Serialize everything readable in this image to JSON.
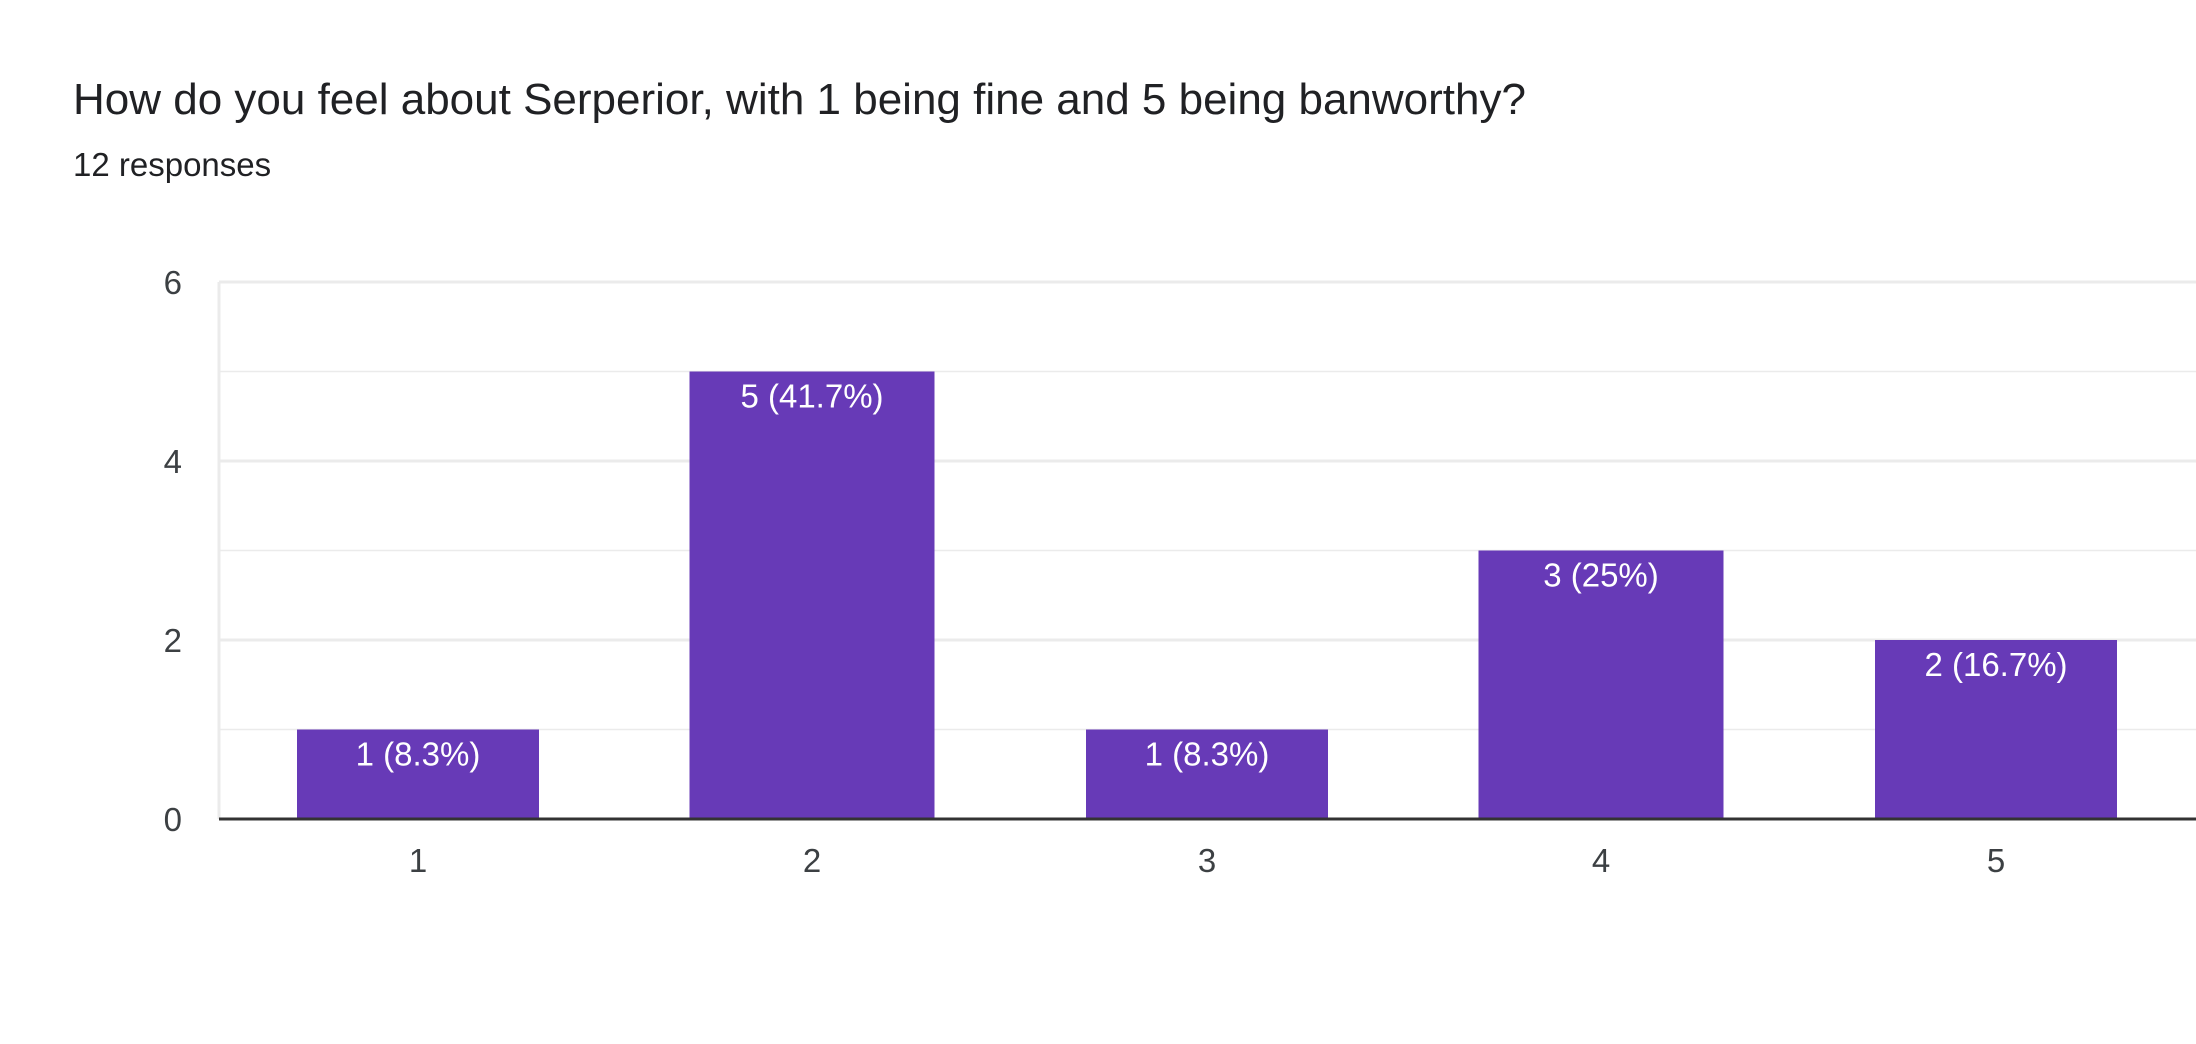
{
  "question": {
    "title": "How do you feel about Serperior, with 1 being fine and 5 being banworthy?",
    "responses": "12 responses"
  },
  "colors": {
    "bar": "#673ab7",
    "grid": "#ebebeb",
    "baseline": "#333333"
  },
  "chart_data": {
    "type": "bar",
    "categories": [
      "1",
      "2",
      "3",
      "4",
      "5"
    ],
    "values": [
      1,
      5,
      1,
      3,
      2
    ],
    "data_labels": [
      "1 (8.3%)",
      "5 (41.7%)",
      "1 (8.3%)",
      "3 (25%)",
      "2 (16.7%)"
    ],
    "yticks": [
      0,
      2,
      4,
      6
    ],
    "ylim": [
      0,
      6
    ],
    "title": "How do you feel about Serperior, with 1 being fine and 5 being banworthy?",
    "xlabel": "",
    "ylabel": "",
    "grid": true,
    "legend": "none"
  }
}
